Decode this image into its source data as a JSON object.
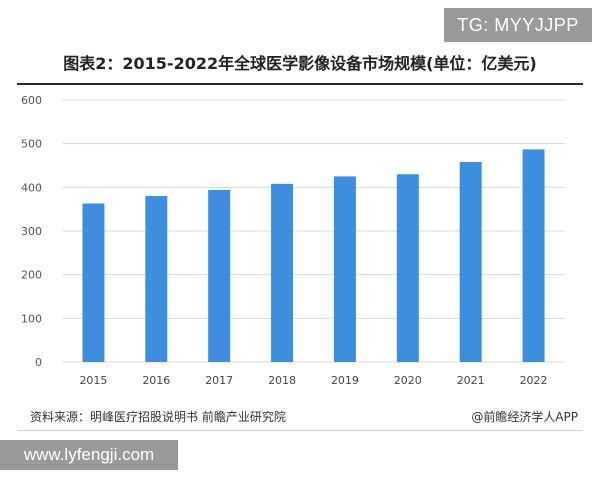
{
  "overlay": {
    "tg_badge": "TG: MYYJJPP",
    "url_badge": "www.lyfengji.com"
  },
  "chart_data": {
    "type": "bar",
    "title": "图表2：2015-2022年全球医学影像设备市场规模(单位：亿美元)",
    "categories": [
      "2015",
      "2016",
      "2017",
      "2018",
      "2019",
      "2020",
      "2021",
      "2022"
    ],
    "values": [
      363,
      380,
      394,
      408,
      425,
      430,
      458,
      487
    ],
    "ylim": [
      0,
      600
    ],
    "yticks": [
      0,
      100,
      200,
      300,
      400,
      500,
      600
    ],
    "grid": true,
    "bar_color": "#3f8ede"
  },
  "footer": {
    "source": "资料来源：明峰医疗招股说明书 前瞻产业研究院",
    "credit": "@前瞻经济学人APP"
  }
}
